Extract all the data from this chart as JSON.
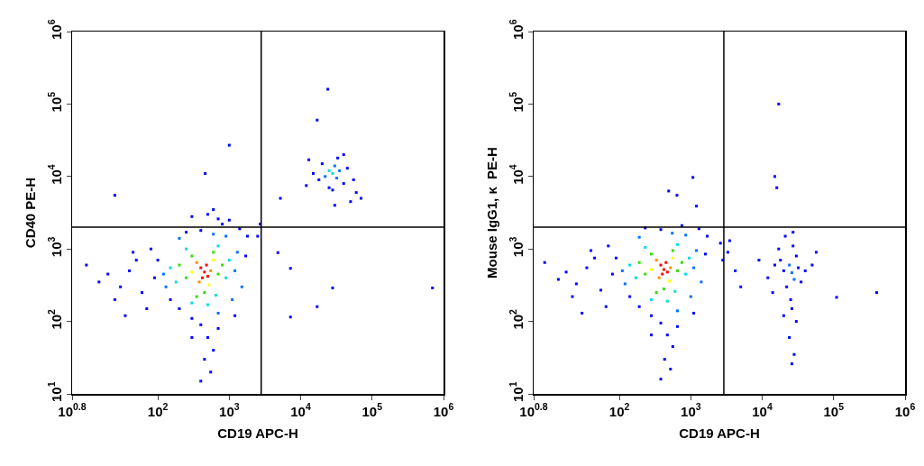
{
  "chart_data": [
    {
      "type": "scatter",
      "xlabel": "CD19 APC-H",
      "ylabel": "CD40 PE-H",
      "log": "xy",
      "grid": false,
      "marker": "square",
      "xlim": [
        6.31,
        1000000
      ],
      "ylim": [
        10,
        1000000
      ],
      "xticks": [
        {
          "value": 6.31,
          "label": "10$^{0.8}$"
        },
        {
          "value": 100,
          "label": "10$^{2}$"
        },
        {
          "value": 1000,
          "label": "10$^{3}$"
        },
        {
          "value": 10000,
          "label": "10$^{4}$"
        },
        {
          "value": 100000,
          "label": "10$^{5}$"
        },
        {
          "value": 1000000,
          "label": "10$^{6}$"
        }
      ],
      "yticks": [
        {
          "value": 10,
          "label": "10$^{1}$"
        },
        {
          "value": 100,
          "label": "10$^{2}$"
        },
        {
          "value": 1000,
          "label": "10$^{3}$"
        },
        {
          "value": 10000,
          "label": "10$^{4}$"
        },
        {
          "value": 100000,
          "label": "10$^{5}$"
        },
        {
          "value": 1000000,
          "label": "10$^{6}$"
        }
      ],
      "ref_lines": [
        {
          "axis": "x",
          "value": 2800,
          "color": "#000000"
        },
        {
          "axis": "y",
          "value": 2000,
          "color": "#000000"
        }
      ],
      "series": [
        {
          "color": "#ff0000",
          "x": [
            450,
            400,
            500,
            420,
            480
          ],
          "values": [
            480,
            550,
            420,
            400,
            600
          ]
        },
        {
          "color": "#ff8c00",
          "x": [
            350,
            550,
            380
          ],
          "values": [
            650,
            500,
            350
          ]
        },
        {
          "color": "#ffff00",
          "x": [
            600,
            300,
            520
          ],
          "values": [
            700,
            480,
            320
          ]
        },
        {
          "color": "#33dd00",
          "x": [
            250,
            700,
            300,
            600,
            450,
            200,
            800,
            350
          ],
          "values": [
            400,
            450,
            800,
            900,
            250,
            600,
            600,
            220
          ]
        },
        {
          "color": "#00dddd",
          "x": [
            180,
            900,
            250,
            700,
            500,
            150,
            1000,
            300,
            650,
            28000,
            25000
          ],
          "values": [
            350,
            400,
            1000,
            1100,
            170,
            550,
            700,
            180,
            230,
            11000,
            12000
          ]
        },
        {
          "color": "#0070ff",
          "x": [
            120,
            130,
            1200,
            1300,
            200,
            600,
            900,
            1500,
            1100,
            700,
            32000,
            22000,
            30000,
            35000
          ],
          "values": [
            450,
            300,
            500,
            900,
            1400,
            1600,
            1500,
            300,
            200,
            130,
            9500,
            10000,
            14000,
            12000
          ]
        },
        {
          "color": "#0000ff",
          "x": [
            400,
            300,
            200,
            150,
            100,
            90,
            1700,
            1800,
            1400,
            250,
            800,
            400,
            500,
            600,
            300,
            450,
            550,
            400,
            700,
            1200,
            40,
            30,
            20,
            60,
            50,
            25,
            15,
            10,
            70,
            35,
            45,
            80,
            300,
            500,
            700,
            1000,
            600,
            25,
            460,
            1000,
            2500,
            2700,
            4800,
            7200,
            17000,
            28000,
            700000,
            7200,
            18000,
            20000,
            40000,
            45000,
            15000,
            28000,
            33000,
            25000,
            55000,
            12000,
            60000,
            70000,
            50000,
            13000,
            40000,
            5200,
            30000,
            24000,
            17000
          ],
          "values": [
            1800,
            110,
            150,
            200,
            700,
            400,
            800,
            1500,
            1900,
            1700,
            2200,
            90,
            60,
            40,
            60,
            30,
            20,
            15,
            80,
            120,
            500,
            300,
            450,
            250,
            700,
            200,
            350,
            600,
            150,
            120,
            900,
            1000,
            2800,
            3000,
            2600,
            2500,
            3500,
            5500,
            11000,
            27000,
            1500,
            2200,
            890,
            540,
            160,
            290,
            290,
            115,
            9000,
            15000,
            8000,
            13000,
            11000,
            6500,
            18000,
            7000,
            9000,
            7500,
            6000,
            5000,
            4500,
            17000,
            20000,
            5000,
            4000,
            160000,
            60000
          ]
        }
      ]
    },
    {
      "type": "scatter",
      "xlabel": "CD19 APC-H",
      "ylabel": "Mouse IgG1, κ  PE-H",
      "log": "xy",
      "grid": false,
      "marker": "square",
      "xlim": [
        6.31,
        1000000
      ],
      "ylim": [
        10,
        1000000
      ],
      "xticks": [
        {
          "value": 6.31,
          "label": "10$^{0.8}$"
        },
        {
          "value": 100,
          "label": "10$^{2}$"
        },
        {
          "value": 1000,
          "label": "10$^{3}$"
        },
        {
          "value": 10000,
          "label": "10$^{4}$"
        },
        {
          "value": 100000,
          "label": "10$^{5}$"
        },
        {
          "value": 1000000,
          "label": "10$^{6}$"
        }
      ],
      "yticks": [
        {
          "value": 10,
          "label": "10$^{1}$"
        },
        {
          "value": 100,
          "label": "10$^{2}$"
        },
        {
          "value": 1000,
          "label": "10$^{3}$"
        },
        {
          "value": 10000,
          "label": "10$^{4}$"
        },
        {
          "value": 100000,
          "label": "10$^{5}$"
        },
        {
          "value": 1000000,
          "label": "10$^{6}$"
        }
      ],
      "ref_lines": [
        {
          "axis": "x",
          "value": 2900,
          "color": "#000000"
        },
        {
          "axis": "y",
          "value": 2000,
          "color": "#000000"
        }
      ],
      "series": [
        {
          "color": "#ff0000",
          "x": [
            420,
            380,
            470,
            400,
            450
          ],
          "values": [
            520,
            600,
            480,
            450,
            650
          ]
        },
        {
          "color": "#ff8c00",
          "x": [
            330,
            520,
            360
          ],
          "values": [
            700,
            550,
            400
          ]
        },
        {
          "color": "#ffff00",
          "x": [
            560,
            280,
            500
          ],
          "values": [
            750,
            520,
            360
          ]
        },
        {
          "color": "#33dd00",
          "x": [
            230,
            650,
            280,
            560,
            420,
            190,
            750,
            330
          ],
          "values": [
            450,
            500,
            850,
            950,
            280,
            650,
            650,
            250
          ]
        },
        {
          "color": "#00dddd",
          "x": [
            170,
            850,
            230,
            650,
            470,
            140,
            950,
            280,
            600
          ],
          "values": [
            400,
            450,
            1050,
            1150,
            190,
            600,
            750,
            200,
            260
          ]
        },
        {
          "color": "#0070ff",
          "x": [
            110,
            120,
            1100,
            1200,
            190,
            550,
            850,
            1400,
            1000,
            650,
            26000,
            24000,
            28000
          ],
          "values": [
            500,
            330,
            550,
            950,
            1450,
            1650,
            1550,
            350,
            220,
            140,
            470,
            600,
            380
          ]
        },
        {
          "color": "#0000ff",
          "x": [
            380,
            280,
            190,
            140,
            90,
            80,
            1600,
            1700,
            1300,
            230,
            750,
            380,
            470,
            560,
            280,
            430,
            520,
            380,
            650,
            1100,
            35,
            25,
            18,
            55,
            45,
            22,
            14,
            9,
            65,
            30,
            40,
            70,
            1070,
            490,
            640,
            1200,
            2600,
            2800,
            20000,
            32000,
            22000,
            30000,
            18000,
            35000,
            25000,
            27000,
            15000,
            40000,
            21000,
            26000,
            30000,
            24000,
            28000,
            26000,
            12000,
            9000,
            50000,
            57000,
            14000,
            20000,
            17000,
            3500,
            3300,
            4200,
            5000,
            17000,
            15000,
            16000,
            400000,
            110000,
            27000
          ],
          "values": [
            1850,
            120,
            160,
            220,
            750,
            450,
            850,
            1500,
            1900,
            1950,
            2100,
            95,
            65,
            45,
            65,
            30,
            22,
            16,
            85,
            130,
            550,
            330,
            480,
            270,
            750,
            220,
            380,
            650,
            160,
            130,
            950,
            1100,
            9700,
            6300,
            5500,
            3900,
            1200,
            700,
            500,
            550,
            300,
            800,
            700,
            350,
            200,
            1100,
            600,
            500,
            1500,
            150,
            100,
            60,
            35,
            26,
            400,
            700,
            600,
            900,
            250,
            120,
            1000,
            1300,
            900,
            500,
            300,
            100000,
            10000,
            7000,
            250,
            215,
            1700
          ]
        }
      ]
    }
  ]
}
